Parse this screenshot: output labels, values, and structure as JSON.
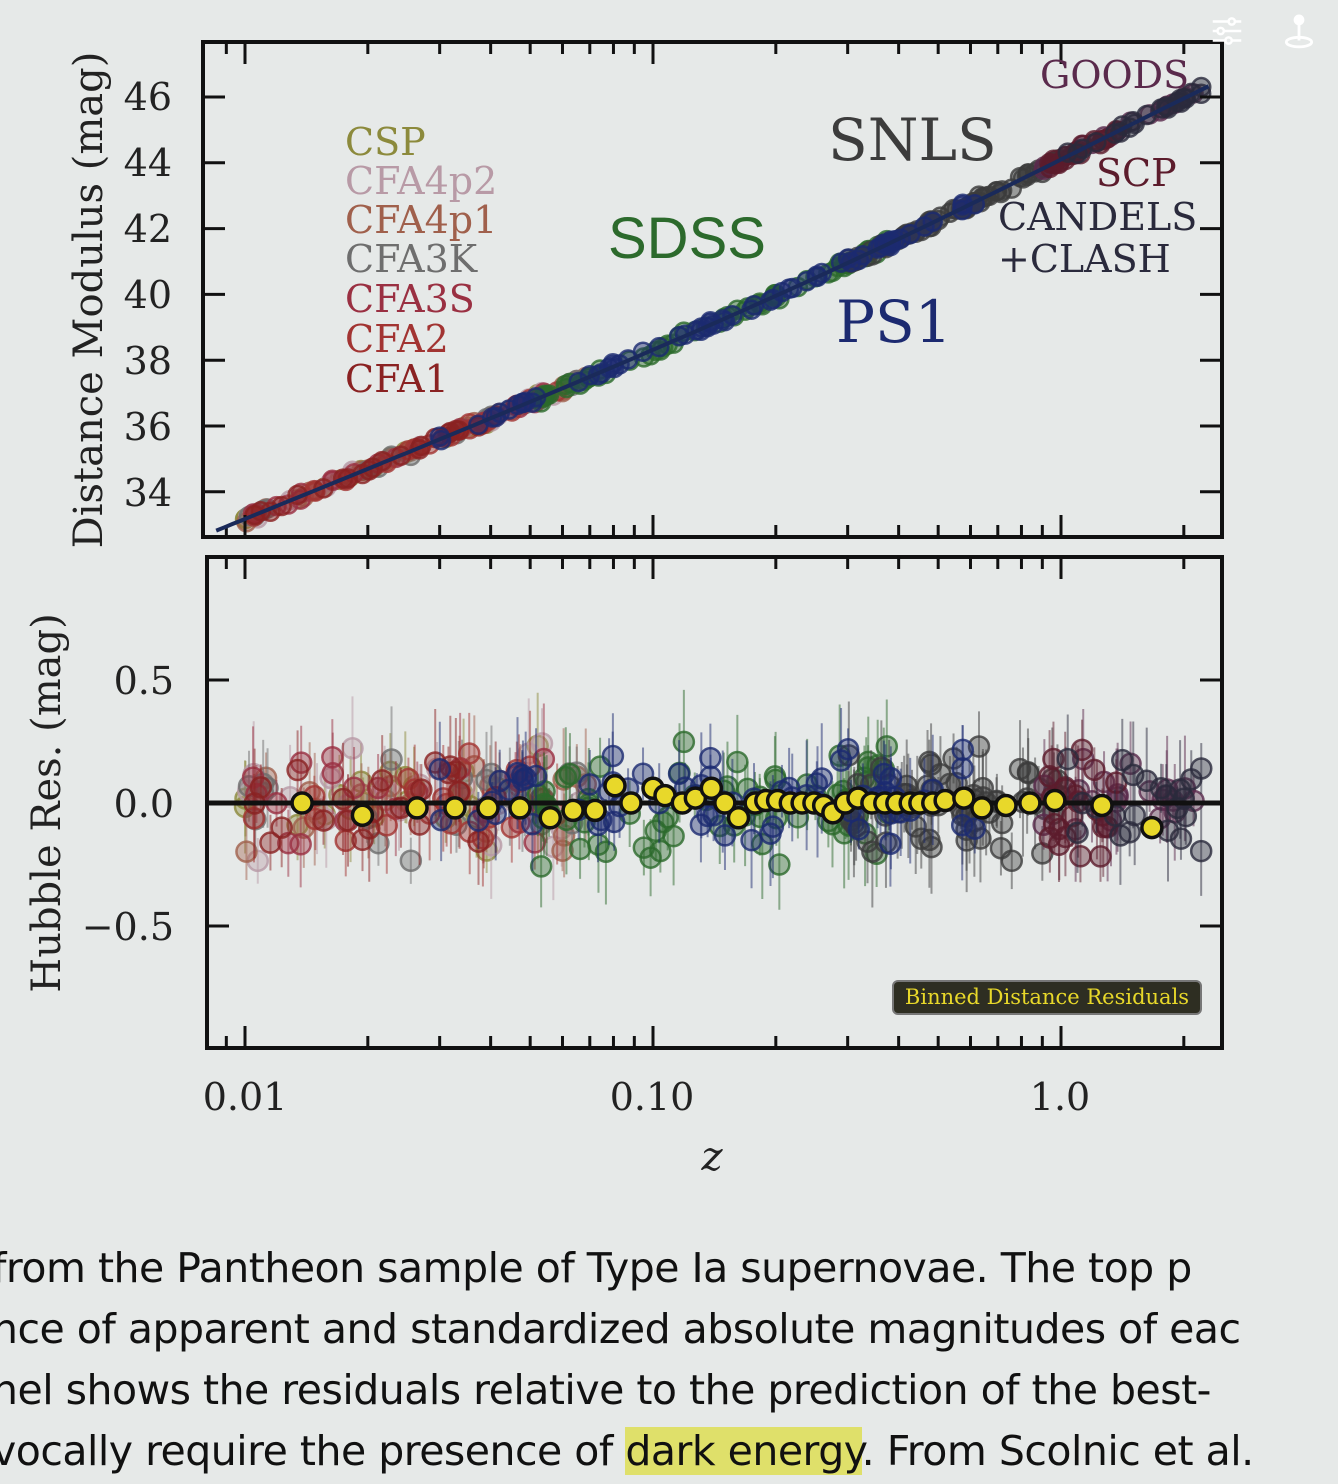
{
  "chart_data": [
    {
      "type": "scatter",
      "panel": "top",
      "ylabel": "Distance Modulus (mag)",
      "xscale": "log",
      "xlim": [
        0.008,
        2.3
      ],
      "ylim": [
        33,
        47
      ],
      "yticks": [
        "34",
        "36",
        "38",
        "40",
        "42",
        "44",
        "46"
      ],
      "ytick_values": [
        34,
        36,
        38,
        40,
        42,
        44,
        46
      ],
      "surveys": [
        {
          "name": "CSP",
          "color": "#8c8a3c",
          "z_range": [
            0.01,
            0.06
          ]
        },
        {
          "name": "CFA4p2",
          "color": "#b89aa6",
          "z_range": [
            0.01,
            0.07
          ]
        },
        {
          "name": "CFA4p1",
          "color": "#a0604c",
          "z_range": [
            0.01,
            0.07
          ]
        },
        {
          "name": "CFA3K",
          "color": "#6e6e6e",
          "z_range": [
            0.01,
            0.07
          ]
        },
        {
          "name": "CFA3S",
          "color": "#9a3042",
          "z_range": [
            0.01,
            0.07
          ]
        },
        {
          "name": "CFA2",
          "color": "#a23432",
          "z_range": [
            0.01,
            0.06
          ]
        },
        {
          "name": "CFA1",
          "color": "#8a2222",
          "z_range": [
            0.01,
            0.05
          ]
        },
        {
          "name": "SDSS",
          "color": "#2c6a2c",
          "z_range": [
            0.05,
            0.4
          ]
        },
        {
          "name": "SNLS",
          "color": "#3c3c3c",
          "z_range": [
            0.3,
            1.0
          ]
        },
        {
          "name": "PS1",
          "color": "#1c2a70",
          "z_range": [
            0.03,
            0.65
          ]
        },
        {
          "name": "GOODS",
          "color": "#5a2a4c",
          "z_range": [
            0.9,
            2.26
          ]
        },
        {
          "name": "SCP",
          "color": "#5c1c2c",
          "z_range": [
            0.9,
            1.4
          ]
        },
        {
          "name": "CANDELS",
          "name2": "+CLASH",
          "color": "#2a2a3c",
          "z_range": [
            1.0,
            2.26
          ]
        }
      ]
    },
    {
      "type": "scatter",
      "panel": "bottom",
      "ylabel": "Hubble Res. (mag)",
      "xlabel": "z",
      "xscale": "log",
      "xlim": [
        0.008,
        2.3
      ],
      "ylim": [
        -0.8,
        0.8
      ],
      "yticks": [
        "0.5",
        "0.0",
        "−0.5"
      ],
      "ytick_values": [
        0.5,
        0.0,
        -0.5
      ],
      "xticks": [
        "0.01",
        "0.10",
        "1.0"
      ],
      "xtick_values": [
        0.01,
        0.1,
        1.0
      ],
      "legend": {
        "label": "Binned Distance Residuals",
        "placement": "bottom-right",
        "color": "#e8d82a"
      },
      "binned": {
        "z": [
          0.0138,
          0.0194,
          0.0264,
          0.0327,
          0.0394,
          0.0472,
          0.056,
          0.0637,
          0.0721,
          0.0807,
          0.0883,
          0.1,
          0.107,
          0.118,
          0.127,
          0.139,
          0.15,
          0.162,
          0.178,
          0.189,
          0.202,
          0.217,
          0.232,
          0.248,
          0.262,
          0.276,
          0.296,
          0.318,
          0.344,
          0.37,
          0.396,
          0.427,
          0.451,
          0.485,
          0.52,
          0.578,
          0.64,
          0.733,
          0.839,
          0.966,
          1.26,
          1.67
        ],
        "res": [
          0.0,
          -0.05,
          -0.02,
          -0.02,
          -0.02,
          -0.02,
          -0.06,
          -0.03,
          -0.03,
          0.07,
          0.0,
          0.06,
          0.03,
          0.0,
          0.02,
          0.06,
          0.0,
          -0.06,
          0.0,
          0.01,
          0.01,
          0.0,
          0.0,
          0.0,
          -0.01,
          -0.04,
          0.0,
          0.02,
          0.0,
          0.0,
          0.0,
          0.0,
          0.0,
          0.0,
          0.01,
          0.02,
          -0.02,
          -0.01,
          0.0,
          0.01,
          -0.01,
          -0.1
        ]
      }
    }
  ],
  "caption": {
    "line1": " from the Pantheon sample of Type Ia supernovae. The top p",
    "line2": "nce of apparent and standardized absolute magnitudes of eac",
    "line3": "nel shows the residuals relative to the prediction of the best-",
    "line4_pre": "vocally require the presence of ",
    "line4_highlight": "dark energy",
    "line4_post": ". From Scolnic et al."
  },
  "icons": [
    "sliders-icon",
    "pin-icon"
  ]
}
